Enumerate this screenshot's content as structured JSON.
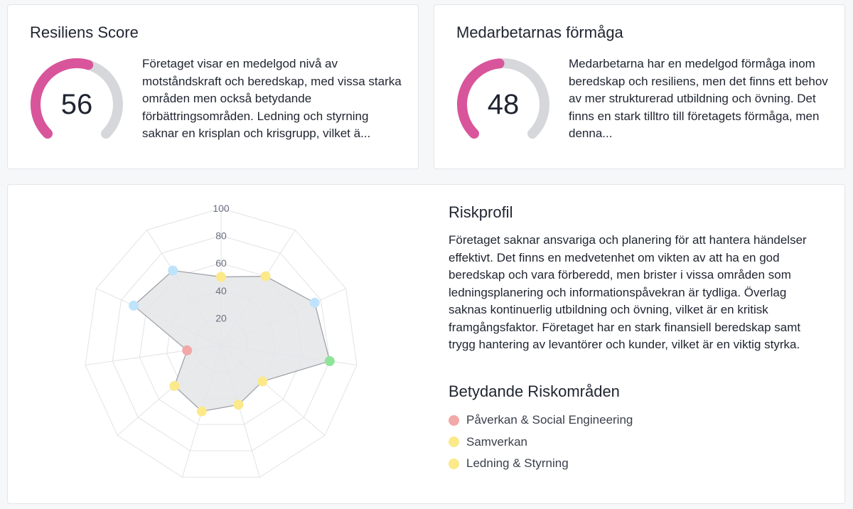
{
  "resilience": {
    "title": "Resiliens Score",
    "score": "56",
    "score_value": 56,
    "text": "Företaget visar en medelgod nivå av motståndskraft och beredskap, med vissa starka områden men också betydande förbättringsområden. Ledning och styrning saknar en krisplan och krisgrupp, vilket ä..."
  },
  "staff": {
    "title": "Medarbetarnas förmåga",
    "score": "48",
    "score_value": 48,
    "text": "Medarbetarna har en medelgod förmåga inom beredskap och resiliens, men det finns ett behov av mer strukturerad utbildning och övning. Det finns en stark tilltro till företagets förmåga, men denna..."
  },
  "gauge_colors": {
    "fill": "#d9559b",
    "track": "#d5d7db"
  },
  "risk": {
    "title": "Riskprofil",
    "text": "Företaget saknar ansvariga och planering för att hantera händelser effektivt. Det finns en medvetenhet om vikten av att ha en god beredskap och vara förberedd, men brister i vissa områden som ledningsplanering och informationspåvekran är tydliga. Överlag saknas kontinuerlig utbildning och övning, vilket är en kritisk framgångsfaktor. Företaget har en stark finansiell beredskap samt trygg hantering av levantörer och kunder, vilket är en viktig styrka.",
    "areas_title": "Betydande Riskområden",
    "areas": [
      {
        "label": "Påverkan & Social Engineering",
        "color": "#f2a8a8"
      },
      {
        "label": "Samverkan",
        "color": "#fbe98a"
      },
      {
        "label": "Ledning & Styrning",
        "color": "#fbe98a"
      }
    ]
  },
  "chart_data": {
    "type": "radar",
    "rmin": 0,
    "rmax": 100,
    "ticks": [
      "20",
      "40",
      "60",
      "80",
      "100"
    ],
    "tick_values": [
      20,
      40,
      60,
      80,
      100
    ],
    "values": [
      50,
      60,
      75,
      80,
      40,
      45,
      50,
      45,
      25,
      70,
      65
    ],
    "point_colors": [
      "#fbe98a",
      "#fbe98a",
      "#bfe3fb",
      "#8ee59a",
      "#fbe98a",
      "#fbe98a",
      "#fbe98a",
      "#fbe98a",
      "#f2a8a8",
      "#bfe3fb",
      "#bfe3fb"
    ],
    "fill_color": "#e4e5e7",
    "line_color": "#9a9ca3",
    "grid_color": "#e2e3e6"
  }
}
